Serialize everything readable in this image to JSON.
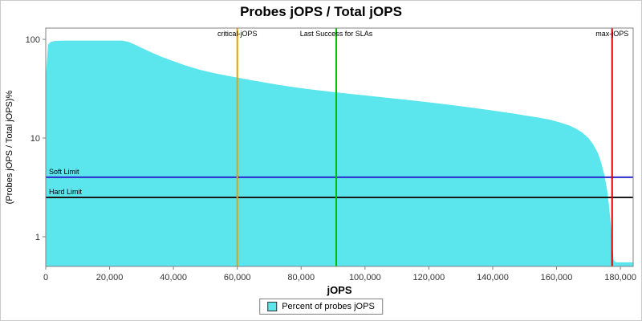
{
  "chart_data": {
    "type": "area",
    "title": "Probes jOPS / Total jOPS",
    "xlabel": "jOPS",
    "ylabel": "(Probes jOPS / Total jOPS)%",
    "xlim": [
      0,
      184000
    ],
    "ylim": [
      0.5,
      130
    ],
    "ylog": true,
    "grid": false,
    "legend_position": "bottom",
    "xticks": [
      {
        "v": 0,
        "label": "0"
      },
      {
        "v": 20000,
        "label": "20,000"
      },
      {
        "v": 40000,
        "label": "40,000"
      },
      {
        "v": 60000,
        "label": "60,000"
      },
      {
        "v": 80000,
        "label": "80,000"
      },
      {
        "v": 100000,
        "label": "100,000"
      },
      {
        "v": 120000,
        "label": "120,000"
      },
      {
        "v": 140000,
        "label": "140,000"
      },
      {
        "v": 160000,
        "label": "160,000"
      },
      {
        "v": 180000,
        "label": "180,000"
      }
    ],
    "yticks": [
      {
        "v": 1,
        "label": "1"
      },
      {
        "v": 10,
        "label": "10"
      },
      {
        "v": 100,
        "label": "100"
      }
    ],
    "series": [
      {
        "name": "Percent of probes jOPS",
        "color": "#5BE6EE",
        "points": [
          [
            0,
            40
          ],
          [
            700,
            88
          ],
          [
            1500,
            94
          ],
          [
            3000,
            96.5
          ],
          [
            6000,
            97
          ],
          [
            10000,
            97
          ],
          [
            15000,
            97
          ],
          [
            20000,
            97
          ],
          [
            24000,
            97
          ],
          [
            26000,
            94
          ],
          [
            28000,
            88
          ],
          [
            30000,
            82
          ],
          [
            33000,
            74
          ],
          [
            36000,
            67
          ],
          [
            40000,
            60
          ],
          [
            44000,
            54
          ],
          [
            48000,
            49.5
          ],
          [
            52000,
            46
          ],
          [
            56000,
            43.3
          ],
          [
            60000,
            41
          ],
          [
            64000,
            38.8
          ],
          [
            68000,
            36.8
          ],
          [
            72000,
            35
          ],
          [
            76000,
            33.4
          ],
          [
            80000,
            32
          ],
          [
            84000,
            30.8
          ],
          [
            88000,
            29.8
          ],
          [
            92000,
            28.8
          ],
          [
            96000,
            27.9
          ],
          [
            100000,
            27
          ],
          [
            105000,
            26
          ],
          [
            110000,
            25
          ],
          [
            115000,
            24
          ],
          [
            120000,
            23
          ],
          [
            125000,
            22
          ],
          [
            130000,
            21
          ],
          [
            135000,
            20
          ],
          [
            140000,
            19
          ],
          [
            145000,
            18
          ],
          [
            150000,
            17
          ],
          [
            154000,
            16.2
          ],
          [
            158000,
            15.3
          ],
          [
            161000,
            14.4
          ],
          [
            164000,
            13.4
          ],
          [
            166000,
            12.5
          ],
          [
            168000,
            11.4
          ],
          [
            170000,
            10
          ],
          [
            171500,
            8.6
          ],
          [
            173000,
            7
          ],
          [
            174000,
            5.6
          ],
          [
            175000,
            4.2
          ],
          [
            175800,
            3
          ],
          [
            176400,
            2.1
          ],
          [
            177000,
            1.3
          ],
          [
            177500,
            0.8
          ],
          [
            177900,
            0.58
          ],
          [
            178500,
            0.55
          ],
          [
            184000,
            0.55
          ]
        ]
      }
    ],
    "vlines": [
      {
        "label": "critical-jOPS",
        "x": 60000,
        "color": "#E8A000"
      },
      {
        "label": "Last Success for SLAs",
        "x": 91000,
        "color": "#00BE00"
      },
      {
        "label": "max-jOPS",
        "x": 177400,
        "color": "#DD0000"
      }
    ],
    "hlines": [
      {
        "label": "Soft Limit",
        "y": 4,
        "color": "#2A2ACC"
      },
      {
        "label": "Hard Limit",
        "y": 2.5,
        "color": "#1A1A1A"
      }
    ],
    "legend": [
      {
        "label": "Percent of probes jOPS",
        "color": "#5BE6EE"
      }
    ],
    "colors": {
      "axis_border": "#808080",
      "tick_text": "#333333",
      "marker_label": "#000000"
    }
  }
}
